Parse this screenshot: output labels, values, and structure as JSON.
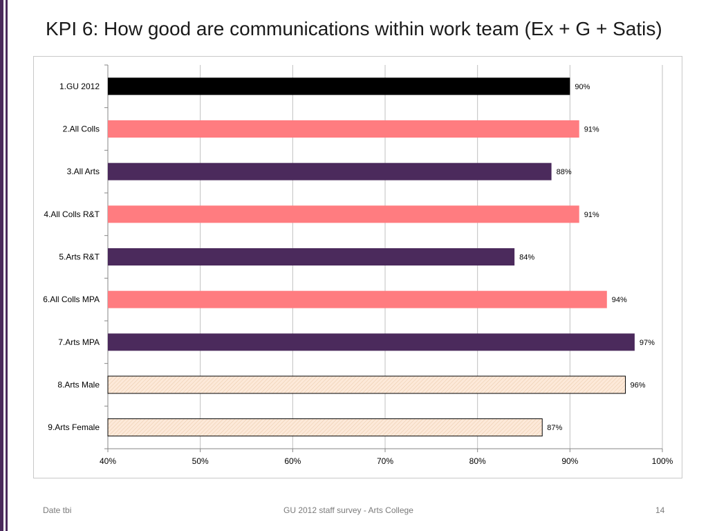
{
  "slide": {
    "title": "KPI 6: How good are communications within work team (Ex + G + Satis)",
    "accent_color": "#4b2a5c"
  },
  "footer": {
    "date": "Date tbi",
    "center": "GU 2012 staff survey - Arts College",
    "page": "14"
  },
  "chart_data": {
    "type": "bar",
    "orientation": "horizontal",
    "categories": [
      "1.GU 2012",
      "2.All Colls",
      "3.All Arts",
      "4.All Colls R&T",
      "5.Arts R&T",
      "6.All Colls MPA",
      "7.Arts MPA",
      "8.Arts Male",
      "9.Arts Female"
    ],
    "values": [
      90,
      91,
      88,
      91,
      84,
      94,
      97,
      96,
      87
    ],
    "value_labels": [
      "90%",
      "91%",
      "88%",
      "91%",
      "84%",
      "94%",
      "97%",
      "96%",
      "87%"
    ],
    "bar_styles": [
      "solid-black",
      "solid-salmon",
      "solid-purple",
      "solid-salmon",
      "solid-purple",
      "solid-salmon",
      "solid-purple",
      "hatched-peach",
      "hatched-peach"
    ],
    "colors": {
      "solid-black": "#000000",
      "solid-salmon": "#ff7c80",
      "solid-purple": "#4b2a5c",
      "hatched-peach": "#fde9d9",
      "hatched-outline": "#000000",
      "grid": "#bfbfbf",
      "axis": "#868686"
    },
    "xlim": [
      40,
      100
    ],
    "x_ticks": [
      40,
      50,
      60,
      70,
      80,
      90,
      100
    ],
    "x_tick_labels": [
      "40%",
      "50%",
      "60%",
      "70%",
      "80%",
      "90%",
      "100%"
    ],
    "grid": true,
    "legend": "none",
    "title": "",
    "xlabel": "",
    "ylabel": ""
  }
}
